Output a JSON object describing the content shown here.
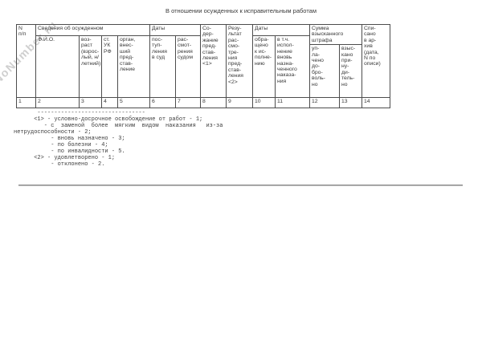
{
  "watermark": "NoNumber.ru",
  "title": "В отношении осужденных к исправительным работам",
  "table": {
    "groups": {
      "info": "Сведения об осужденном",
      "dates_court": "Даты",
      "dates_exec": "Даты",
      "fine": "Сумма\nвзысканного\nштрафа"
    },
    "cols": {
      "num": "N\nп/п",
      "fio": "Ф.И.О.",
      "age": "воз-\nраст\n(взрос-\nлый, н/\nлетний)",
      "article": "ст.\nУК\nРФ",
      "organ": "орган,\nвнес-\nший\nпред-\nстав-\nление",
      "received": "пос-\nтуп-\nления\nв суд",
      "considered": "рас-\nсмот-\nрения\nсудом",
      "content": "Со-\nдер-\nжание\nпред-\nстав-\nления\n<1>",
      "result": "Резу-\nльтат\nрас-\nсмо-\nтре-\nния\nпред-\nстав-\nления\n<2>",
      "executed": "обра-\nщено\nк ис-\nполне-\nнию",
      "incl_new_punishment": "в т.ч.\nиспол-\nнение\nвновь\nназна-\nченного\nнаказа-\nния",
      "paid_voluntary": "уп-\nла-\nчено\nдо-\nбро-\nволь-\nно",
      "collected_forced": "взыс-\nкано\nпри-\nну-\nди-\nтель-\nно",
      "archive": "Спи-\nсано\nв ар-\nхив\n(дата,\nN по\nописи)"
    },
    "number_row": [
      "1",
      "2",
      "3",
      "4",
      "5",
      "6",
      "7",
      "8",
      "9",
      "10",
      "11",
      "12",
      "13",
      "14"
    ]
  },
  "footnote": "       --------------------------------\n      <1> - условно-досрочное освобождение от работ - 1;\n         - с  заменой  более  мягким  видом  наказания   из-за\nнетрудоспособности - 2;\n           - вновь назначено - 3;\n           - по болезни - 4;\n           - по инвалидности - 5.\n      <2> - удовлетворено - 1;\n           - отклонено - 2."
}
